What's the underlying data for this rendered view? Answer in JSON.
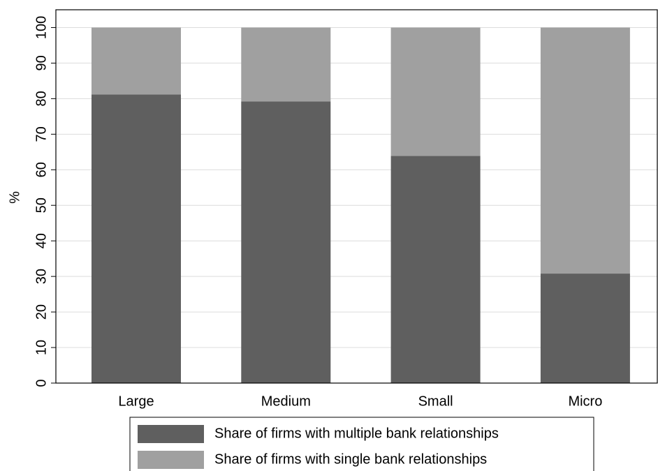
{
  "chart_data": {
    "type": "stacked_bar",
    "y_label": "%",
    "categories": [
      "Large",
      "Medium",
      "Small",
      "Micro"
    ],
    "series": [
      {
        "name": "Share of firms with multiple bank relationships",
        "color": "#5f5f5f",
        "values": [
          81.2,
          79.2,
          63.9,
          30.8
        ]
      },
      {
        "name": "Share of firms with single bank relationships",
        "color": "#a0a0a0",
        "values": [
          18.8,
          20.8,
          36.1,
          69.2
        ]
      }
    ],
    "ylim": [
      0,
      105
    ],
    "yticks": [
      0,
      10,
      20,
      30,
      40,
      50,
      60,
      70,
      80,
      90,
      100
    ],
    "grid": true
  }
}
